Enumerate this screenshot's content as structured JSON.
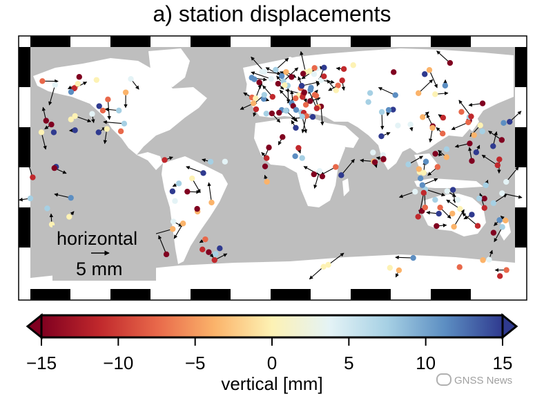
{
  "title": "a) station displacements",
  "legend": {
    "line1": "horizontal",
    "line2": "5 mm"
  },
  "colorbar": {
    "title": "vertical [mm]",
    "ticks": [
      "−15",
      "−10",
      "−5",
      "0",
      "5",
      "10",
      "15"
    ],
    "tick_values": [
      -15,
      -10,
      -5,
      0,
      5,
      10,
      15
    ],
    "range": [
      -15,
      15
    ],
    "colors": [
      "#800020",
      "#c0282c",
      "#e8684a",
      "#fbb36a",
      "#fdf2b4",
      "#e4f3f6",
      "#a6d0e4",
      "#5c8ec2",
      "#2f3a8f"
    ]
  },
  "map": {
    "ocean_color": "#bebebe",
    "land_color": "#ffffff",
    "arrow_color": "#000000"
  },
  "watermark": "GNSS News"
}
